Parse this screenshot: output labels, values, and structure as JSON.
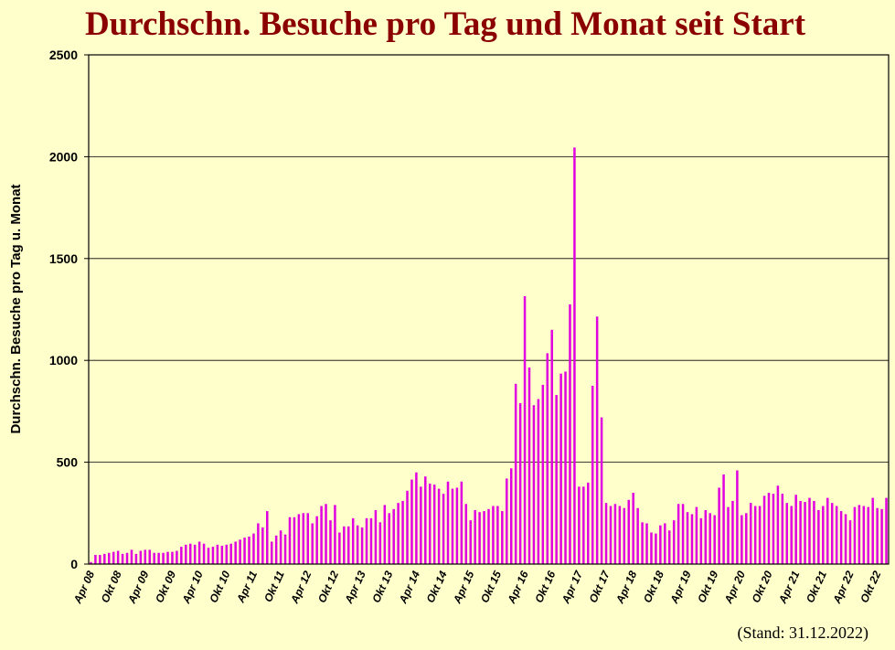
{
  "chart_data": {
    "type": "bar",
    "title": "Durchschn. Besuche pro Tag und Monat seit Start",
    "y_label": "Durchschn.  Besuche pro Tag u. Monat",
    "annotation": "(Stand: 31.12.2022)",
    "color": "#e000e0",
    "grid": true,
    "ylim": [
      0,
      2500
    ],
    "yticks": [
      0,
      500,
      1000,
      1500,
      2000,
      2500
    ],
    "categories": [
      "Apr 08",
      null,
      null,
      null,
      null,
      null,
      "Okt 08",
      null,
      null,
      null,
      null,
      null,
      "Apr 09",
      null,
      null,
      null,
      null,
      null,
      "Okt 09",
      null,
      null,
      null,
      null,
      null,
      "Apr 10",
      null,
      null,
      null,
      null,
      null,
      "Okt 10",
      null,
      null,
      null,
      null,
      null,
      "Apr 11",
      null,
      null,
      null,
      null,
      null,
      "Okt 11",
      null,
      null,
      null,
      null,
      null,
      "Apr 12",
      null,
      null,
      null,
      null,
      null,
      "Okt 12",
      null,
      null,
      null,
      null,
      null,
      "Apr 13",
      null,
      null,
      null,
      null,
      null,
      "Okt 13",
      null,
      null,
      null,
      null,
      null,
      "Apr 14",
      null,
      null,
      null,
      null,
      null,
      "Okt 14",
      null,
      null,
      null,
      null,
      null,
      "Apr 15",
      null,
      null,
      null,
      null,
      null,
      "Okt 15",
      null,
      null,
      null,
      null,
      null,
      "Apr 16",
      null,
      null,
      null,
      null,
      null,
      "Okt 16",
      null,
      null,
      null,
      null,
      null,
      "Apr 17",
      null,
      null,
      null,
      null,
      null,
      "Okt 17",
      null,
      null,
      null,
      null,
      null,
      "Apr 18",
      null,
      null,
      null,
      null,
      null,
      "Okt 18",
      null,
      null,
      null,
      null,
      null,
      "Apr 19",
      null,
      null,
      null,
      null,
      null,
      "Okt 19",
      null,
      null,
      null,
      null,
      null,
      "Apr 20",
      null,
      null,
      null,
      null,
      null,
      "Okt 20",
      null,
      null,
      null,
      null,
      null,
      "Apr 21",
      null,
      null,
      null,
      null,
      null,
      "Okt 21",
      null,
      null,
      null,
      null,
      null,
      "Apr 22",
      null,
      null,
      null,
      null,
      null,
      "Okt 22",
      null,
      null
    ],
    "values": [
      10,
      45,
      45,
      50,
      55,
      60,
      65,
      50,
      55,
      70,
      50,
      65,
      70,
      70,
      55,
      55,
      55,
      60,
      60,
      65,
      85,
      95,
      100,
      95,
      110,
      100,
      80,
      85,
      95,
      90,
      95,
      100,
      110,
      120,
      130,
      135,
      150,
      200,
      180,
      260,
      110,
      140,
      165,
      145,
      230,
      230,
      245,
      250,
      250,
      200,
      235,
      285,
      295,
      215,
      290,
      155,
      185,
      185,
      225,
      190,
      180,
      225,
      225,
      265,
      205,
      290,
      250,
      270,
      300,
      310,
      360,
      415,
      450,
      380,
      430,
      395,
      390,
      370,
      345,
      405,
      370,
      375,
      405,
      295,
      215,
      265,
      255,
      260,
      270,
      285,
      285,
      260,
      420,
      470,
      885,
      790,
      1315,
      965,
      780,
      810,
      880,
      1035,
      1150,
      830,
      935,
      945,
      1275,
      2045,
      380,
      380,
      400,
      875,
      1215,
      720,
      300,
      285,
      295,
      285,
      275,
      315,
      350,
      275,
      205,
      200,
      155,
      150,
      190,
      200,
      165,
      215,
      295,
      295,
      255,
      245,
      280,
      225,
      265,
      250,
      240,
      375,
      440,
      280,
      310,
      460,
      240,
      250,
      300,
      285,
      285,
      335,
      350,
      345,
      385,
      345,
      300,
      285,
      340,
      310,
      305,
      325,
      310,
      265,
      285,
      325,
      300,
      285,
      260,
      245,
      215,
      280,
      290,
      285,
      280,
      325,
      275,
      270,
      325
    ]
  }
}
